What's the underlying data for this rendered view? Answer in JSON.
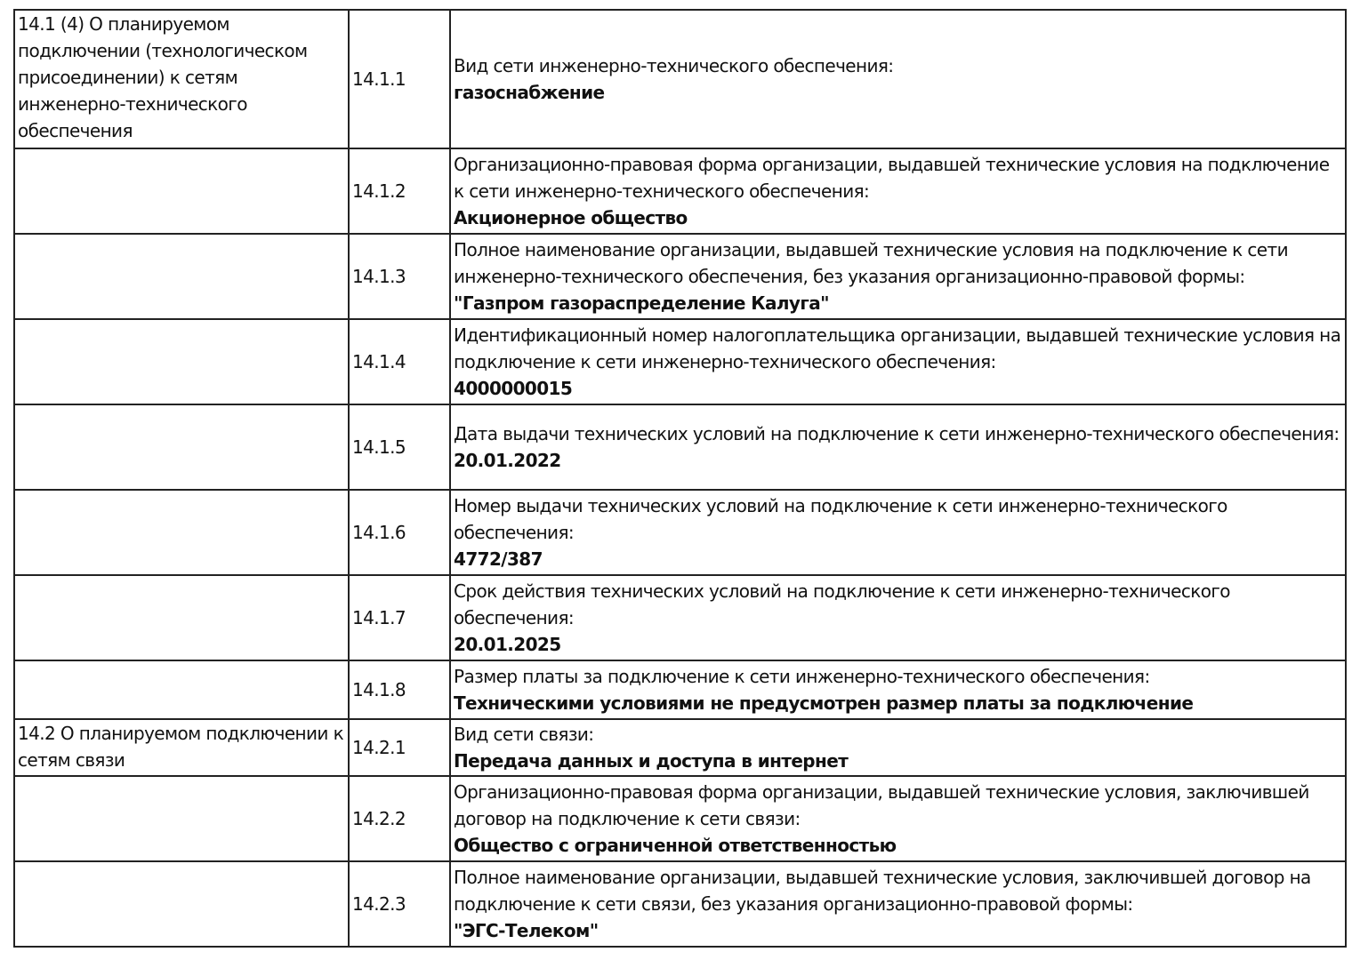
{
  "rows": [
    {
      "section": "14.1 (4) О планируемом подключении (технологическом присоединении) к сетям инженерно-технического обеспечения",
      "code": "14.1.1",
      "label": "Вид сети инженерно-технического обеспечения:",
      "value": "газоснабжение"
    },
    {
      "section": "",
      "code": "14.1.2",
      "label": "Организационно-правовая форма организации, выдавшей технические условия на подключение к сети инженерно-технического обеспечения:",
      "value": "Акционерное общество"
    },
    {
      "section": "",
      "code": "14.1.3",
      "label": "Полное наименование организации, выдавшей технические условия на подключение к сети инженерно-технического обеспечения, без указания организационно-правовой формы:",
      "value": "\"Газпром газораспределение Калуга\""
    },
    {
      "section": "",
      "code": "14.1.4",
      "label": "Идентификационный номер налогоплательщика организации, выдавшей технические условия на подключение к сети инженерно-технического обеспечения:",
      "value": "4000000015"
    },
    {
      "section": "",
      "code": "14.1.5",
      "label": "Дата выдачи технических условий на подключение к сети инженерно-технического обеспечения:",
      "value": "20.01.2022"
    },
    {
      "section": "",
      "code": "14.1.6",
      "label": "Номер выдачи технических условий на подключение к сети инженерно-технического обеспечения:",
      "value": "4772/387"
    },
    {
      "section": "",
      "code": "14.1.7",
      "label": "Срок действия технических условий на подключение к сети инженерно-технического обеспечения:",
      "value": "20.01.2025"
    },
    {
      "section": "",
      "code": "14.1.8",
      "label": "Размер платы за подключение к сети инженерно-технического обеспечения:",
      "value": "Техническими условиями не предусмотрен размер платы за подключение"
    },
    {
      "section": "14.2 О планируемом подключении к сетям связи",
      "code": "14.2.1",
      "label": "Вид сети связи:",
      "value": "Передача данных и доступа в интернет"
    },
    {
      "section": "",
      "code": "14.2.2",
      "label": "Организационно-правовая форма организации, выдавшей технические условия, заключившей договор на подключение к сети связи:",
      "value": "Общество с ограниченной ответственностью"
    },
    {
      "section": "",
      "code": "14.2.3",
      "label": "Полное наименование организации, выдавшей технические условия, заключившей договор на подключение к сети связи, без указания организационно-правовой формы:",
      "value": "\"ЭГС-Телеком\""
    }
  ]
}
